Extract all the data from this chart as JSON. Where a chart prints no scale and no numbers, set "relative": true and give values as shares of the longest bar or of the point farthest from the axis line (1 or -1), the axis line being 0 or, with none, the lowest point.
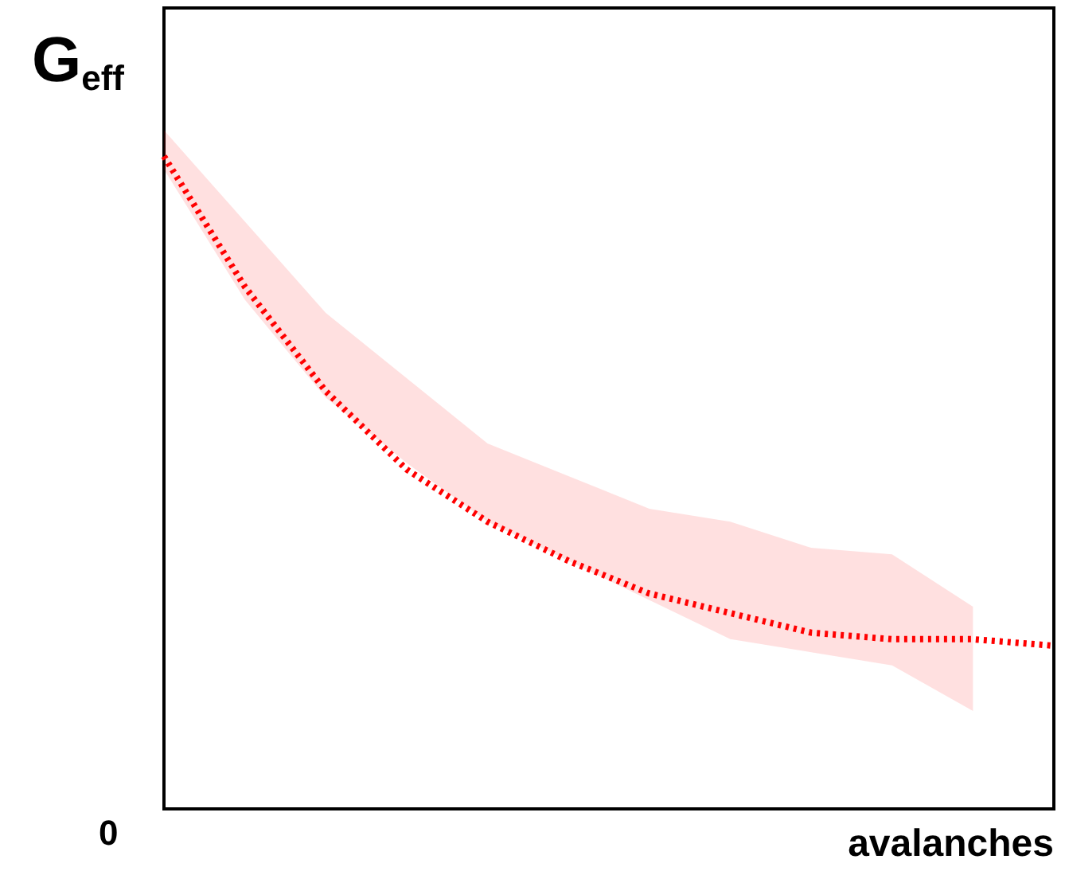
{
  "chart_data": {
    "type": "line",
    "relative": true,
    "xlabel": "avalanches",
    "ylabel": "G$_{eff}$",
    "annotations": [
      "0"
    ],
    "categories": [
      null,
      null,
      null,
      null,
      null,
      null,
      null,
      null,
      null,
      null,
      null,
      null
    ],
    "series": [
      {
        "color": "#ff0000",
        "line_style": "dotted",
        "marker": "none",
        "values": [
          1.0,
          0.8,
          0.64,
          0.52,
          0.44,
          0.38,
          0.33,
          0.3,
          0.27,
          0.26,
          0.26,
          0.25
        ],
        "lower": [
          0.98,
          0.78,
          0.63,
          0.53,
          0.44,
          0.38,
          0.32,
          0.26,
          0.24,
          0.22,
          0.15,
          null
        ],
        "upper": [
          1.04,
          0.9,
          0.76,
          0.66,
          0.56,
          0.51,
          0.46,
          0.44,
          0.4,
          0.39,
          0.31,
          null
        ]
      }
    ]
  }
}
